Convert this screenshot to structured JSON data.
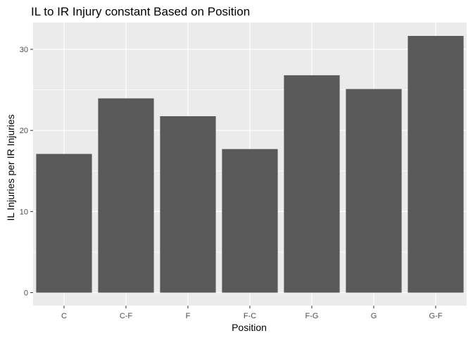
{
  "chart_data": {
    "type": "bar",
    "title": "IL to IR Injury constant Based on Position",
    "xlabel": "Position",
    "ylabel": "IL Injuries per IR Injuries",
    "categories": [
      "C",
      "C-F",
      "F",
      "F-C",
      "F-G",
      "G",
      "G-F"
    ],
    "values": [
      17.1,
      23.95,
      21.75,
      17.7,
      26.8,
      25.1,
      31.65
    ],
    "y_ticks": [
      0,
      10,
      20,
      30
    ],
    "ylim": [
      -1.6,
      33.3
    ],
    "grid": true,
    "colors": {
      "bar": "#595959",
      "panel": "#ebebeb",
      "grid_major": "#ffffff",
      "tick_text": "#4d4d4d",
      "tick_mark": "#333333"
    }
  }
}
